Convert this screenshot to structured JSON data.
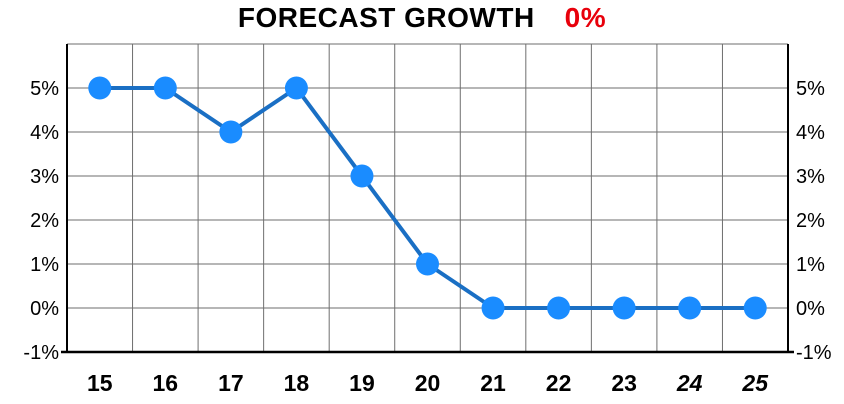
{
  "title": {
    "main": "FORECAST GROWTH",
    "value": "0%",
    "value_color": "#e8000b"
  },
  "chart_data": {
    "type": "line",
    "title": "FORECAST GROWTH",
    "x": [
      "15",
      "16",
      "17",
      "18",
      "19",
      "20",
      "21",
      "22",
      "23",
      "24",
      "25"
    ],
    "italic_x": [
      "24",
      "25"
    ],
    "series": [
      {
        "values": [
          5,
          5,
          4,
          5,
          3,
          1,
          0,
          0,
          0,
          0,
          0
        ]
      }
    ],
    "ylim": [
      -1,
      6
    ],
    "yticks": [
      -1,
      0,
      1,
      2,
      3,
      4,
      5
    ],
    "ytick_labels": [
      "-1%",
      "0%",
      "1%",
      "2%",
      "3%",
      "4%",
      "5%"
    ],
    "grid": true,
    "line_color": "#1a6fc4",
    "marker_color": "#1a8cff",
    "xlabel": "",
    "ylabel": ""
  }
}
